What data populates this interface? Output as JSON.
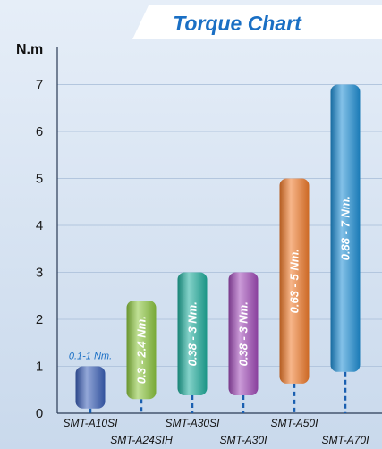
{
  "chart_data": {
    "type": "range-bar",
    "title": "Torque Chart",
    "ylabel": "N.m",
    "ylim": [
      0,
      7.5
    ],
    "y_ticks": [
      0,
      1,
      2,
      3,
      4,
      5,
      6,
      7
    ],
    "orientation": "vertical",
    "series": [
      {
        "category": "SMT-A10SI",
        "low": 0.1,
        "high": 1,
        "label": "0.1-1 Nm.",
        "color": "#3a5fb8",
        "label_position": "above"
      },
      {
        "category": "SMT-A24SIH",
        "low": 0.3,
        "high": 2.4,
        "label": "0.3 - 2.4 Nm.",
        "color": "#8cc63f",
        "label_position": "inside"
      },
      {
        "category": "SMT-A30SI",
        "low": 0.38,
        "high": 3,
        "label": "0.38 - 3 Nm.",
        "color": "#1fae9c",
        "label_position": "inside"
      },
      {
        "category": "SMT-A30I",
        "low": 0.38,
        "high": 3,
        "label": "0.38 - 3 Nm.",
        "color": "#a04ab8",
        "label_position": "inside"
      },
      {
        "category": "SMT-A50I",
        "low": 0.63,
        "high": 5,
        "label": "0.63 - 5 Nm.",
        "color": "#f07a2a",
        "label_position": "inside"
      },
      {
        "category": "SMT-A70I",
        "low": 0.88,
        "high": 7,
        "label": "0.88 - 7 Nm.",
        "color": "#1e8fd6",
        "label_position": "inside"
      }
    ],
    "grid": true,
    "category_label_rows": "alternating"
  }
}
